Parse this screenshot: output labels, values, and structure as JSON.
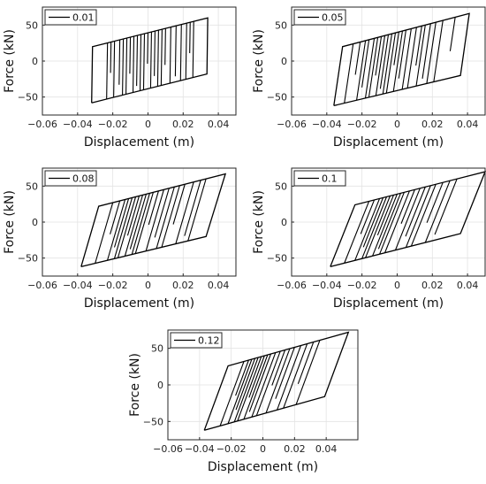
{
  "chart_data": [
    {
      "type": "line",
      "title": "",
      "xlabel": "Displacement (m)",
      "ylabel": "Force (kN)",
      "xlim": [
        -0.06,
        0.05
      ],
      "ylim": [
        -75,
        75
      ],
      "xticks": [
        -0.06,
        -0.04,
        -0.02,
        0,
        0.02,
        0.04
      ],
      "yticks": [
        -50,
        0,
        50
      ],
      "xticklabels": [
        "−0.06",
        "−0.04",
        "−0.02",
        "0",
        "0.02",
        "0.04"
      ],
      "yticklabels": [
        "−50",
        "0",
        "50"
      ],
      "grid": true,
      "legend": "top-left",
      "series": [
        {
          "name": "0.01",
          "color": "#000000",
          "x": [
            -0.032,
            -0.0315,
            0.034,
            0.0335,
            -0.032
          ],
          "y": [
            -58,
            20,
            60,
            -18,
            -58
          ],
          "unload_x": [
            -0.023,
            -0.021,
            -0.019,
            -0.016,
            -0.014,
            -0.012,
            -0.01,
            -0.008,
            -0.006,
            -0.004,
            -0.002,
            0.0,
            0.002,
            0.004,
            0.006,
            0.008,
            0.01,
            0.013,
            0.016,
            0.019,
            0.022,
            0.024,
            0.026
          ]
        }
      ]
    },
    {
      "type": "line",
      "title": "",
      "xlabel": "Displacement (m)",
      "ylabel": "Force (kN)",
      "xlim": [
        -0.06,
        0.05
      ],
      "ylim": [
        -75,
        75
      ],
      "xticks": [
        -0.06,
        -0.04,
        -0.02,
        0,
        0.02,
        0.04
      ],
      "yticks": [
        -50,
        0,
        50
      ],
      "xticklabels": [
        "−0.06",
        "−0.04",
        "−0.02",
        "0",
        "0.02",
        "0.04"
      ],
      "yticklabels": [
        "−50",
        "0",
        "50"
      ],
      "grid": true,
      "legend": "top-left",
      "series": [
        {
          "name": "0.05",
          "color": "#000000",
          "x": [
            -0.036,
            -0.031,
            0.041,
            0.036,
            -0.036
          ],
          "y": [
            -62,
            20,
            66,
            -20,
            -62
          ],
          "unload_x": [
            -0.025,
            -0.021,
            -0.018,
            -0.016,
            -0.013,
            -0.011,
            -0.009,
            -0.007,
            -0.005,
            -0.003,
            -0.001,
            0.001,
            0.003,
            0.005,
            0.008,
            0.011,
            0.014,
            0.016,
            0.019,
            0.022,
            0.026,
            0.033
          ]
        }
      ]
    },
    {
      "type": "line",
      "title": "",
      "xlabel": "Displacement (m)",
      "ylabel": "Force (kN)",
      "xlim": [
        -0.06,
        0.05
      ],
      "ylim": [
        -75,
        75
      ],
      "xticks": [
        -0.06,
        -0.04,
        -0.02,
        0,
        0.02,
        0.04
      ],
      "yticks": [
        -50,
        0,
        50
      ],
      "xticklabels": [
        "−0.06",
        "−0.04",
        "−0.02",
        "0",
        "0.02",
        "0.04"
      ],
      "yticklabels": [
        "−50",
        "0",
        "50"
      ],
      "grid": true,
      "legend": "top-left",
      "series": [
        {
          "name": "0.08",
          "color": "#000000",
          "x": [
            -0.038,
            -0.028,
            0.044,
            0.033,
            -0.038
          ],
          "y": [
            -62,
            22,
            67,
            -20,
            -62
          ],
          "unload_x": [
            -0.02,
            -0.016,
            -0.013,
            -0.011,
            -0.009,
            -0.007,
            -0.005,
            -0.003,
            -0.001,
            0.001,
            0.003,
            0.006,
            0.009,
            0.012,
            0.015,
            0.018,
            0.021,
            0.026,
            0.03,
            0.033
          ]
        }
      ]
    },
    {
      "type": "line",
      "title": "",
      "xlabel": "Displacement (m)",
      "ylabel": "Force (kN)",
      "xlim": [
        -0.06,
        0.05
      ],
      "ylim": [
        -75,
        75
      ],
      "xticks": [
        -0.06,
        -0.04,
        -0.02,
        0,
        0.02,
        0.04
      ],
      "yticks": [
        -50,
        0,
        50
      ],
      "xticklabels": [
        "−0.06",
        "−0.04",
        "−0.02",
        "0",
        "0.02",
        "0.04"
      ],
      "yticklabels": [
        "−50",
        "0",
        "50"
      ],
      "grid": true,
      "legend": "top-left",
      "series": [
        {
          "name": "0.1",
          "color": "#000000",
          "x": [
            -0.038,
            -0.024,
            0.05,
            0.036,
            -0.038
          ],
          "y": [
            -62,
            24,
            70,
            -16,
            -62
          ],
          "unload_x": [
            -0.016,
            -0.013,
            -0.01,
            -0.008,
            -0.006,
            -0.004,
            -0.002,
            0.0,
            0.002,
            0.004,
            0.007,
            0.01,
            0.013,
            0.016,
            0.019,
            0.022,
            0.026,
            0.03,
            0.034
          ]
        }
      ]
    },
    {
      "type": "line",
      "title": "",
      "xlabel": "Displacement (m)",
      "ylabel": "Force (kN)",
      "xlim": [
        -0.06,
        0.06
      ],
      "ylim": [
        -75,
        75
      ],
      "xticks": [
        -0.06,
        -0.04,
        -0.02,
        0,
        0.02,
        0.04
      ],
      "yticks": [
        -50,
        0,
        50
      ],
      "xticklabels": [
        "−0.06",
        "−0.04",
        "−0.02",
        "0",
        "0.02",
        "0.04"
      ],
      "yticklabels": [
        "−50",
        "0",
        "50"
      ],
      "grid": true,
      "legend": "top-left",
      "series": [
        {
          "name": "0.12",
          "color": "#000000",
          "x": [
            -0.037,
            -0.022,
            0.054,
            0.039,
            -0.037
          ],
          "y": [
            -62,
            26,
            72,
            -16,
            -62
          ],
          "unload_x": [
            -0.012,
            -0.009,
            -0.007,
            -0.005,
            -0.003,
            -0.001,
            0.001,
            0.003,
            0.005,
            0.008,
            0.011,
            0.014,
            0.017,
            0.02,
            0.024,
            0.028,
            0.032,
            0.036
          ]
        }
      ]
    }
  ]
}
